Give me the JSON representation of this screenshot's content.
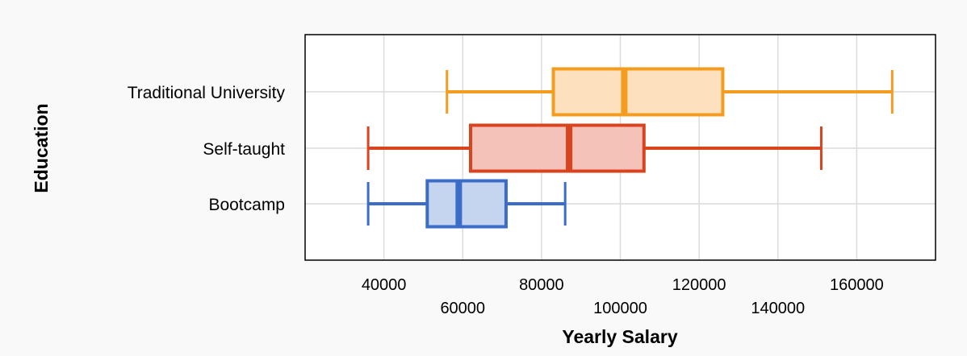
{
  "chart_data": {
    "type": "boxplot",
    "orientation": "horizontal",
    "xlabel": "Yearly Salary",
    "ylabel": "Education",
    "xlim": [
      20000,
      180000
    ],
    "xticks": [
      40000,
      60000,
      80000,
      100000,
      120000,
      140000,
      160000
    ],
    "xtick_labels": [
      "40000",
      "60000",
      "80000",
      "100000",
      "120000",
      "140000",
      "160000"
    ],
    "grid": true,
    "categories": [
      "Traditional University",
      "Self-taught",
      "Bootcamp"
    ],
    "series": [
      {
        "category": "Traditional University",
        "color": "#f39c1f",
        "fill": "#fde0bd",
        "min": 56000,
        "q1": 83000,
        "median": 101000,
        "q3": 126000,
        "max": 169000
      },
      {
        "category": "Self-taught",
        "color": "#d9431e",
        "fill": "#f5c2ba",
        "min": 36000,
        "q1": 62000,
        "median": 87000,
        "q3": 106000,
        "max": 151000
      },
      {
        "category": "Bootcamp",
        "color": "#3a6cc8",
        "fill": "#c5d4ef",
        "min": 36000,
        "q1": 51000,
        "median": 59000,
        "q3": 71000,
        "max": 86000
      }
    ]
  }
}
